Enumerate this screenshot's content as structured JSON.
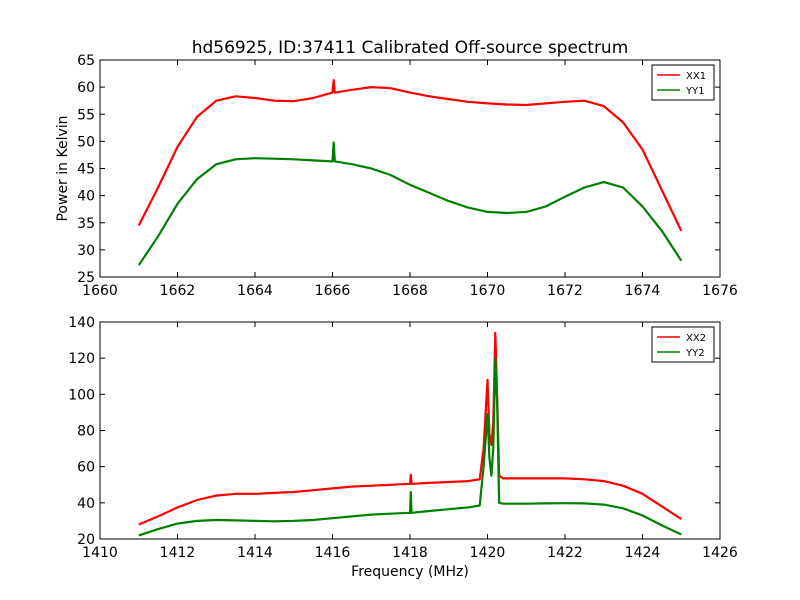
{
  "title": "hd56925, ID:37411 Calibrated Off-source spectrum",
  "chart_data": [
    {
      "type": "line",
      "title": "hd56925, ID:37411 Calibrated Off-source spectrum",
      "xlabel": "",
      "ylabel": "Power in Kelvin",
      "xlim": [
        1660,
        1676
      ],
      "ylim": [
        25,
        65
      ],
      "xticks": [
        1660,
        1662,
        1664,
        1666,
        1668,
        1670,
        1672,
        1674,
        1676
      ],
      "yticks": [
        25,
        30,
        35,
        40,
        45,
        50,
        55,
        60,
        65
      ],
      "legend": "top-right",
      "grid": false,
      "series": [
        {
          "name": "XX1",
          "color": "#ff0000",
          "x": [
            1661.0,
            1661.5,
            1662.0,
            1662.5,
            1663.0,
            1663.5,
            1664.0,
            1664.5,
            1665.0,
            1665.5,
            1666.0,
            1666.03,
            1666.06,
            1666.5,
            1667.0,
            1667.5,
            1668.0,
            1668.5,
            1669.0,
            1669.5,
            1670.0,
            1670.5,
            1671.0,
            1671.5,
            1672.0,
            1672.5,
            1673.0,
            1673.5,
            1674.0,
            1674.5,
            1675.0
          ],
          "y": [
            34.5,
            41.5,
            49.0,
            54.5,
            57.5,
            58.3,
            58.0,
            57.5,
            57.4,
            58.0,
            59.0,
            61.3,
            59.0,
            59.5,
            60.0,
            59.8,
            59.0,
            58.3,
            57.8,
            57.3,
            57.0,
            56.8,
            56.7,
            57.0,
            57.3,
            57.5,
            56.5,
            53.5,
            48.5,
            41.0,
            33.5
          ]
        },
        {
          "name": "YY1",
          "color": "#008000",
          "x": [
            1661.0,
            1661.5,
            1662.0,
            1662.5,
            1663.0,
            1663.5,
            1664.0,
            1664.5,
            1665.0,
            1665.5,
            1666.0,
            1666.03,
            1666.06,
            1666.5,
            1667.0,
            1667.5,
            1668.0,
            1668.5,
            1669.0,
            1669.5,
            1670.0,
            1670.5,
            1671.0,
            1671.5,
            1672.0,
            1672.5,
            1673.0,
            1673.5,
            1674.0,
            1674.5,
            1675.0
          ],
          "y": [
            27.2,
            32.5,
            38.5,
            43.0,
            45.8,
            46.7,
            46.9,
            46.8,
            46.7,
            46.5,
            46.3,
            49.8,
            46.3,
            45.8,
            45.0,
            43.8,
            42.0,
            40.5,
            39.0,
            37.8,
            37.0,
            36.8,
            37.0,
            38.0,
            39.8,
            41.5,
            42.5,
            41.5,
            38.0,
            33.5,
            28.0
          ]
        }
      ]
    },
    {
      "type": "line",
      "title": "",
      "xlabel": "Frequency (MHz)",
      "ylabel": "",
      "xlim": [
        1410,
        1426
      ],
      "ylim": [
        20,
        140
      ],
      "xticks": [
        1410,
        1412,
        1414,
        1416,
        1418,
        1420,
        1422,
        1424,
        1426
      ],
      "yticks": [
        20,
        40,
        60,
        80,
        100,
        120,
        140
      ],
      "legend": "top-right",
      "grid": false,
      "series": [
        {
          "name": "XX2",
          "color": "#ff0000",
          "x": [
            1411.0,
            1411.5,
            1412.0,
            1412.5,
            1413.0,
            1413.5,
            1414.0,
            1414.5,
            1415.0,
            1415.5,
            1416.0,
            1416.5,
            1417.0,
            1417.5,
            1418.0,
            1418.02,
            1418.04,
            1418.5,
            1419.0,
            1419.5,
            1419.8,
            1419.9,
            1420.0,
            1420.05,
            1420.1,
            1420.15,
            1420.2,
            1420.25,
            1420.3,
            1420.4,
            1420.5,
            1421.0,
            1421.5,
            1422.0,
            1422.5,
            1423.0,
            1423.5,
            1424.0,
            1424.5,
            1425.0
          ],
          "y": [
            28.0,
            32.5,
            37.5,
            41.5,
            44.0,
            45.0,
            45.0,
            45.5,
            46.0,
            47.0,
            48.0,
            49.0,
            49.5,
            50.0,
            50.5,
            55.5,
            50.5,
            51.0,
            51.5,
            52.0,
            53.0,
            70.0,
            108.0,
            78.0,
            72.0,
            85.0,
            134.0,
            98.0,
            55.0,
            53.5,
            53.5,
            53.5,
            53.5,
            53.5,
            53.0,
            52.0,
            49.5,
            45.0,
            38.0,
            31.0
          ]
        },
        {
          "name": "YY2",
          "color": "#008000",
          "x": [
            1411.0,
            1411.5,
            1412.0,
            1412.5,
            1413.0,
            1413.5,
            1414.0,
            1414.5,
            1415.0,
            1415.5,
            1416.0,
            1416.5,
            1417.0,
            1417.5,
            1418.0,
            1418.02,
            1418.04,
            1418.5,
            1419.0,
            1419.5,
            1419.8,
            1419.9,
            1420.0,
            1420.05,
            1420.1,
            1420.15,
            1420.2,
            1420.25,
            1420.3,
            1420.4,
            1420.5,
            1421.0,
            1421.5,
            1422.0,
            1422.5,
            1423.0,
            1423.5,
            1424.0,
            1424.5,
            1425.0
          ],
          "y": [
            22.0,
            25.5,
            28.5,
            30.0,
            30.5,
            30.3,
            30.0,
            29.8,
            30.0,
            30.5,
            31.5,
            32.5,
            33.5,
            34.0,
            34.5,
            46.0,
            34.5,
            35.5,
            36.5,
            37.5,
            38.5,
            60.0,
            89.0,
            65.0,
            55.0,
            70.0,
            120.0,
            95.0,
            40.0,
            39.5,
            39.5,
            39.5,
            39.7,
            39.8,
            39.7,
            39.0,
            37.0,
            33.0,
            27.5,
            22.5
          ]
        }
      ]
    }
  ]
}
